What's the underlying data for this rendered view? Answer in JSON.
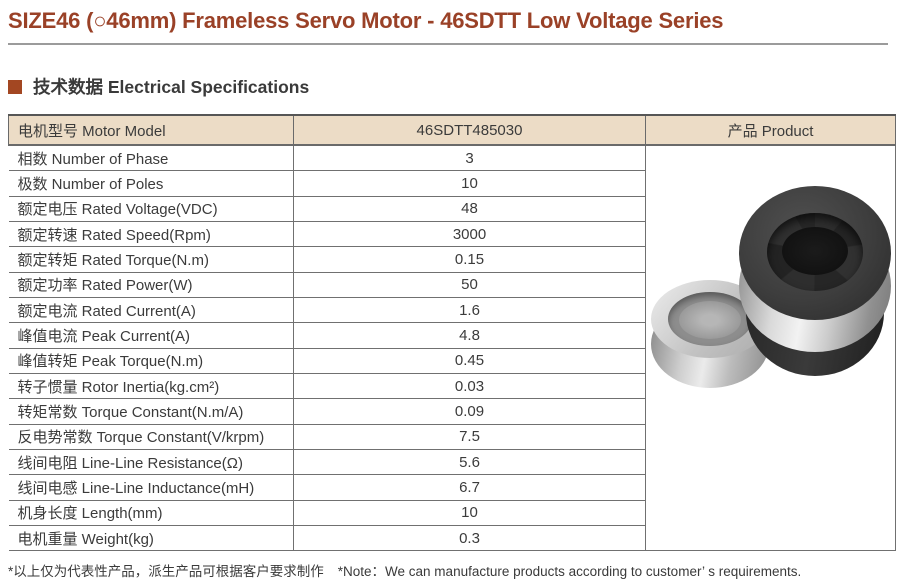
{
  "page": {
    "title": "SIZE46 (○46mm) Frameless Servo Motor - 46SDTT Low Voltage Series"
  },
  "section": {
    "heading": "技术数据 Electrical Specifications"
  },
  "table": {
    "header": {
      "motor_model": "电机型号 Motor Model",
      "model_number": "46SDTT485030",
      "product": "产品 Product"
    },
    "rows": [
      {
        "label": "相数 Number of Phase",
        "value": "3"
      },
      {
        "label": "极数 Number of Poles",
        "value": "10"
      },
      {
        "label": "额定电压 Rated Voltage(VDC)",
        "value": "48"
      },
      {
        "label": "额定转速 Rated Speed(Rpm)",
        "value": "3000"
      },
      {
        "label": "额定转矩 Rated Torque(N.m)",
        "value": "0.15"
      },
      {
        "label": "额定功率 Rated Power(W)",
        "value": "50"
      },
      {
        "label": "额定电流 Rated Current(A)",
        "value": "1.6"
      },
      {
        "label": "峰值电流 Peak Current(A)",
        "value": "4.8"
      },
      {
        "label": "峰值转矩 Peak Torque(N.m)",
        "value": "0.45"
      },
      {
        "label": "转子惯量 Rotor Inertia(kg.cm²)",
        "value": "0.03"
      },
      {
        "label": "转矩常数 Torque Constant(N.m/A)",
        "value": "0.09"
      },
      {
        "label": "反电势常数 Torque Constant(V/krpm)",
        "value": "7.5"
      },
      {
        "label": "线间电阻 Line-Line Resistance(Ω)",
        "value": "5.6"
      },
      {
        "label": "线间电感 Line-Line Inductance(mH)",
        "value": "6.7"
      },
      {
        "label": "机身长度 Length(mm)",
        "value": "10"
      },
      {
        "label": "电机重量 Weight(kg)",
        "value": "0.3"
      }
    ]
  },
  "product_photo": {
    "items": [
      "small silver rotor ring",
      "large black-and-silver stator ring"
    ]
  },
  "footnote": {
    "zh": "*以上仅为代表性产品，派生产品可根据客户要求制作",
    "en": "*Note：We can manufacture products according to customer’ s requirements."
  },
  "colors": {
    "accent_title": "#9a4127",
    "section_square": "#a34722",
    "table_header_bg": "#ecdcc6",
    "table_border": "#707070"
  }
}
